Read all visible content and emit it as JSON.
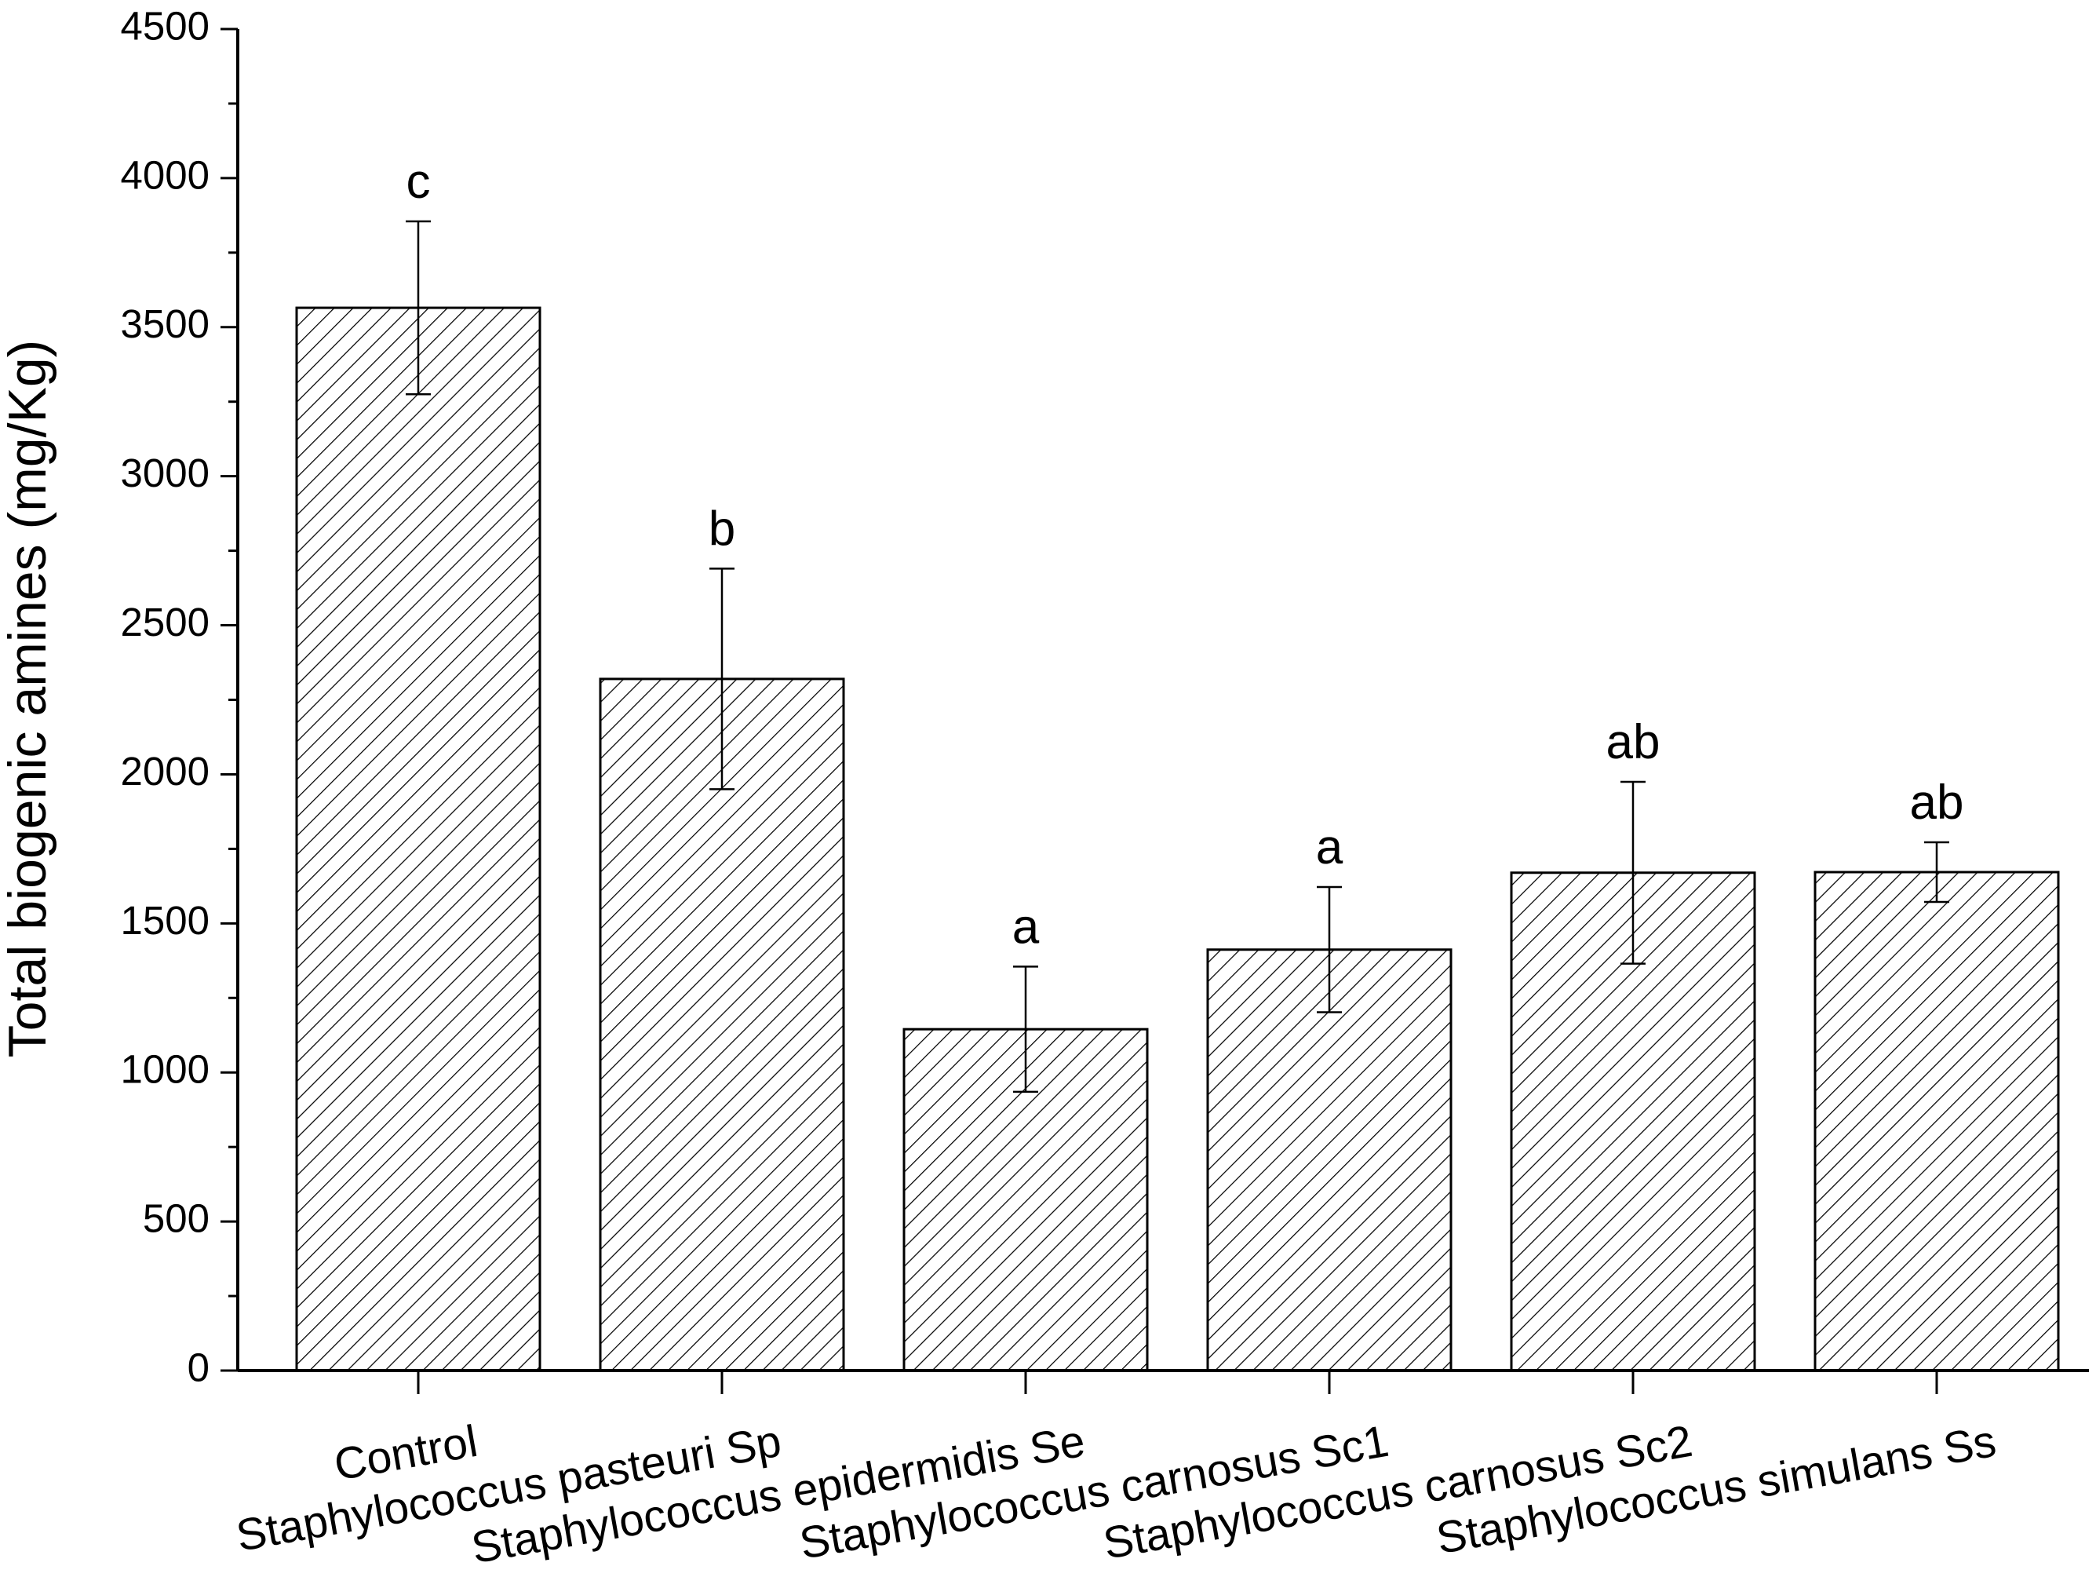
{
  "chart_data": {
    "type": "bar",
    "ylabel": "Total biogenic amines (mg/Kg)",
    "categories": [
      "Control",
      "Staphylococcus pasteuri Sp",
      "Staphylococcus epidermidis Se",
      "Staphylococcus carnosus Sc1",
      "Staphylococcus carnosus Sc2",
      "Staphylococcus simulans Ss"
    ],
    "values": [
      3565,
      2320,
      1145,
      1412,
      1670,
      1672
    ],
    "errors": [
      290,
      370,
      210,
      210,
      305,
      100
    ],
    "annotations": [
      "c",
      "b",
      "a",
      "a",
      "ab",
      "ab"
    ],
    "color": "#000000",
    "ylim": [
      0,
      4500
    ],
    "yticks": [
      0,
      500,
      1000,
      1500,
      2000,
      2500,
      3000,
      3500,
      4000,
      4500
    ]
  }
}
